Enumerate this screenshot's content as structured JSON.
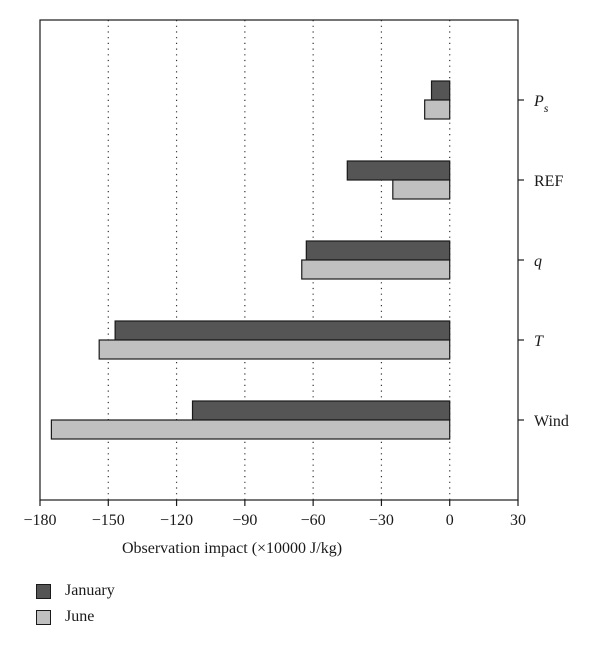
{
  "chart_data": {
    "type": "bar",
    "orientation": "horizontal",
    "xlabel": "Observation impact (×10000 J/kg)",
    "xlim": [
      -180,
      30
    ],
    "xticks": [
      "−180",
      "−150",
      "−120",
      "−90",
      "−60",
      "−30",
      "0",
      "30"
    ],
    "xtick_values": [
      -180,
      -150,
      -120,
      -90,
      -60,
      -30,
      0,
      30
    ],
    "grid": "vertical dotted",
    "legend_position": "bottom-left",
    "categories": [
      {
        "main": "P",
        "sub": "s",
        "italic": true
      },
      {
        "main": "REF",
        "sub": "",
        "italic": false
      },
      {
        "main": "q",
        "sub": "",
        "italic": true
      },
      {
        "main": "T",
        "sub": "",
        "italic": true
      },
      {
        "main": "Wind",
        "sub": "",
        "italic": false
      }
    ],
    "series": [
      {
        "name": "January",
        "color": "#555555",
        "values": [
          -8,
          -45,
          -63,
          -147,
          -113
        ]
      },
      {
        "name": "June",
        "color": "#c0c0c0",
        "values": [
          -11,
          -25,
          -65,
          -154,
          -175
        ]
      }
    ]
  }
}
